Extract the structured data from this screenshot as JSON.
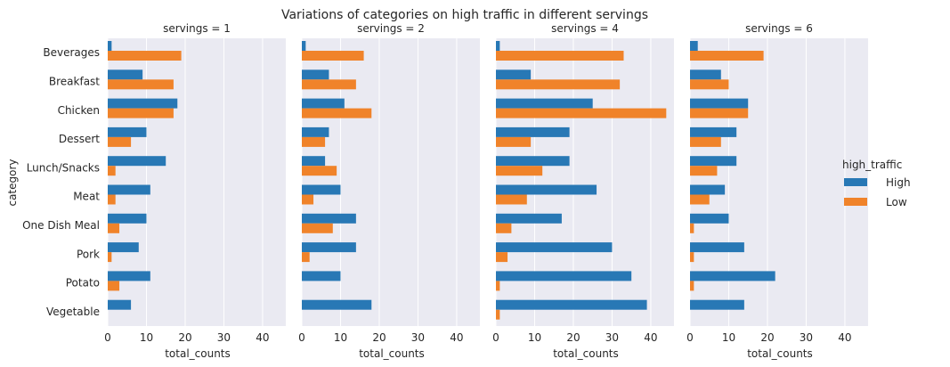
{
  "chart_data": {
    "type": "bar",
    "orientation": "horizontal",
    "title": "Variations of categories on high traffic in different servings",
    "ylabel": "category",
    "xlabel": "total_counts",
    "xlim": [
      0,
      46
    ],
    "xticks": [
      0,
      10,
      20,
      30,
      40
    ],
    "grid": true,
    "legend_placement": "right",
    "legend_title": "high_traffic",
    "categories": [
      "Beverages",
      "Breakfast",
      "Chicken",
      "Dessert",
      "Lunch/Snacks",
      "Meat",
      "One Dish Meal",
      "Pork",
      "Potato",
      "Vegetable"
    ],
    "series_colors": {
      "High": "#2878b5",
      "Low": "#f0832a"
    },
    "facets": [
      {
        "title": "servings = 1",
        "series": [
          {
            "name": "High",
            "values": [
              1,
              9,
              18,
              10,
              15,
              11,
              10,
              8,
              11,
              6
            ]
          },
          {
            "name": "Low",
            "values": [
              19,
              17,
              17,
              6,
              2,
              2,
              3,
              1,
              3,
              0
            ]
          }
        ]
      },
      {
        "title": "servings = 2",
        "series": [
          {
            "name": "High",
            "values": [
              1,
              7,
              11,
              7,
              6,
              10,
              14,
              14,
              10,
              18
            ]
          },
          {
            "name": "Low",
            "values": [
              16,
              14,
              18,
              6,
              9,
              3,
              8,
              2,
              0,
              0
            ]
          }
        ]
      },
      {
        "title": "servings = 4",
        "series": [
          {
            "name": "High",
            "values": [
              1,
              9,
              25,
              19,
              19,
              26,
              17,
              30,
              35,
              39
            ]
          },
          {
            "name": "Low",
            "values": [
              33,
              32,
              44,
              9,
              12,
              8,
              4,
              3,
              1,
              1
            ]
          }
        ]
      },
      {
        "title": "servings = 6",
        "series": [
          {
            "name": "High",
            "values": [
              2,
              8,
              15,
              12,
              12,
              9,
              10,
              14,
              22,
              14
            ]
          },
          {
            "name": "Low",
            "values": [
              19,
              10,
              15,
              8,
              7,
              5,
              1,
              1,
              1,
              0
            ]
          }
        ]
      }
    ]
  }
}
